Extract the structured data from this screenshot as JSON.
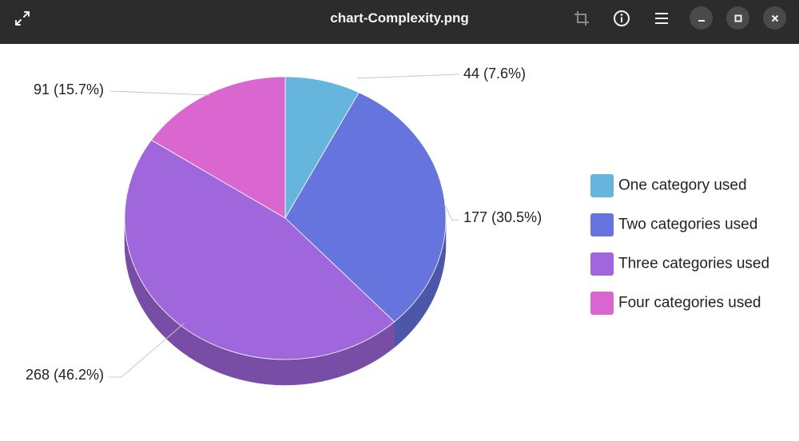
{
  "window": {
    "title": "chart-Complexity.png"
  },
  "toolbar": {
    "icons": [
      "expand-icon",
      "crop-icon",
      "info-icon",
      "menu-icon",
      "minimize-icon",
      "maximize-icon",
      "close-icon"
    ]
  },
  "chart_data": {
    "type": "pie",
    "style": "3d",
    "categories": [
      "One category used",
      "Two categories used",
      "Three categories used",
      "Four categories used"
    ],
    "values": [
      44,
      177,
      268,
      91
    ],
    "data_labels": [
      "44 (7.6%)",
      "177 (30.5%)",
      "268 (46.2%)",
      "91 (15.7%)"
    ],
    "colors": [
      "#66b5dc",
      "#6674de",
      "#a066dc",
      "#da66cf"
    ],
    "legend_position": "right"
  }
}
